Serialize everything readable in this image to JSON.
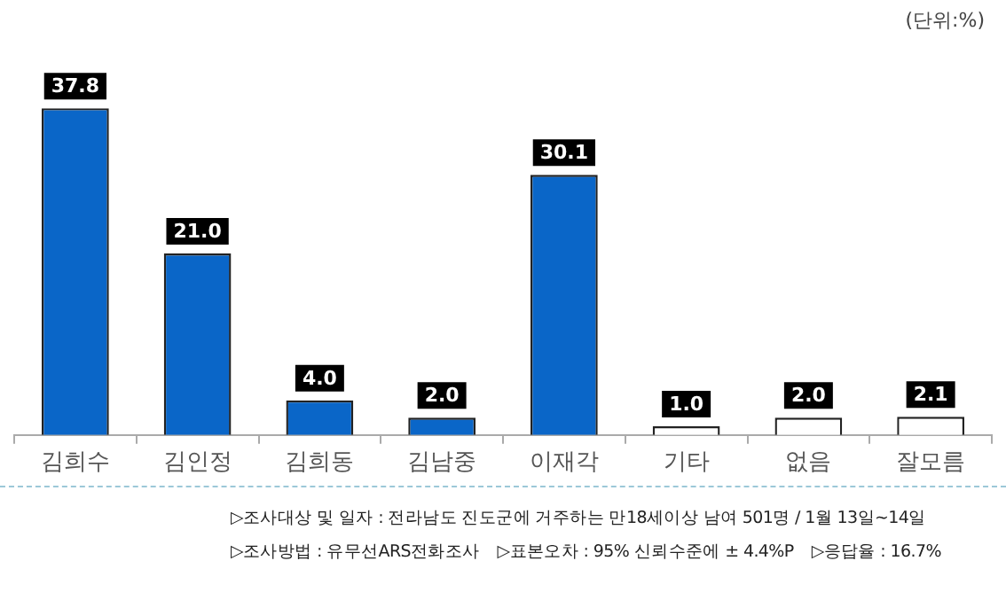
{
  "chart_data": {
    "type": "bar",
    "categories": [
      "김희수",
      "김인정",
      "김희동",
      "김남중",
      "이재각",
      "기타",
      "없음",
      "잘모름"
    ],
    "values": [
      37.8,
      21.0,
      4.0,
      2.0,
      30.1,
      1.0,
      2.0,
      2.1
    ],
    "value_labels": [
      "37.8",
      "21.0",
      "4.0",
      "2.0",
      "30.1",
      "1.0",
      "2.0",
      "2.1"
    ],
    "colors": [
      "#0a66c8",
      "#0a66c8",
      "#0a66c8",
      "#0a66c8",
      "#0a66c8",
      "#ffffff",
      "#ffffff",
      "#ffffff"
    ],
    "grid": false,
    "legend": false,
    "annotations": [
      "(단위:%)",
      "▷조사대상 및 일자 : 전라남도 진도군에 거주하는 만18세이상 남여 501명  /  1월 13일~14일",
      "▷조사방법 : 유무선ARS전화조사",
      "▷표본오차 : 95% 신뢰수준에 ± 4.4%P",
      "▷응답율 : 16.7%"
    ]
  }
}
